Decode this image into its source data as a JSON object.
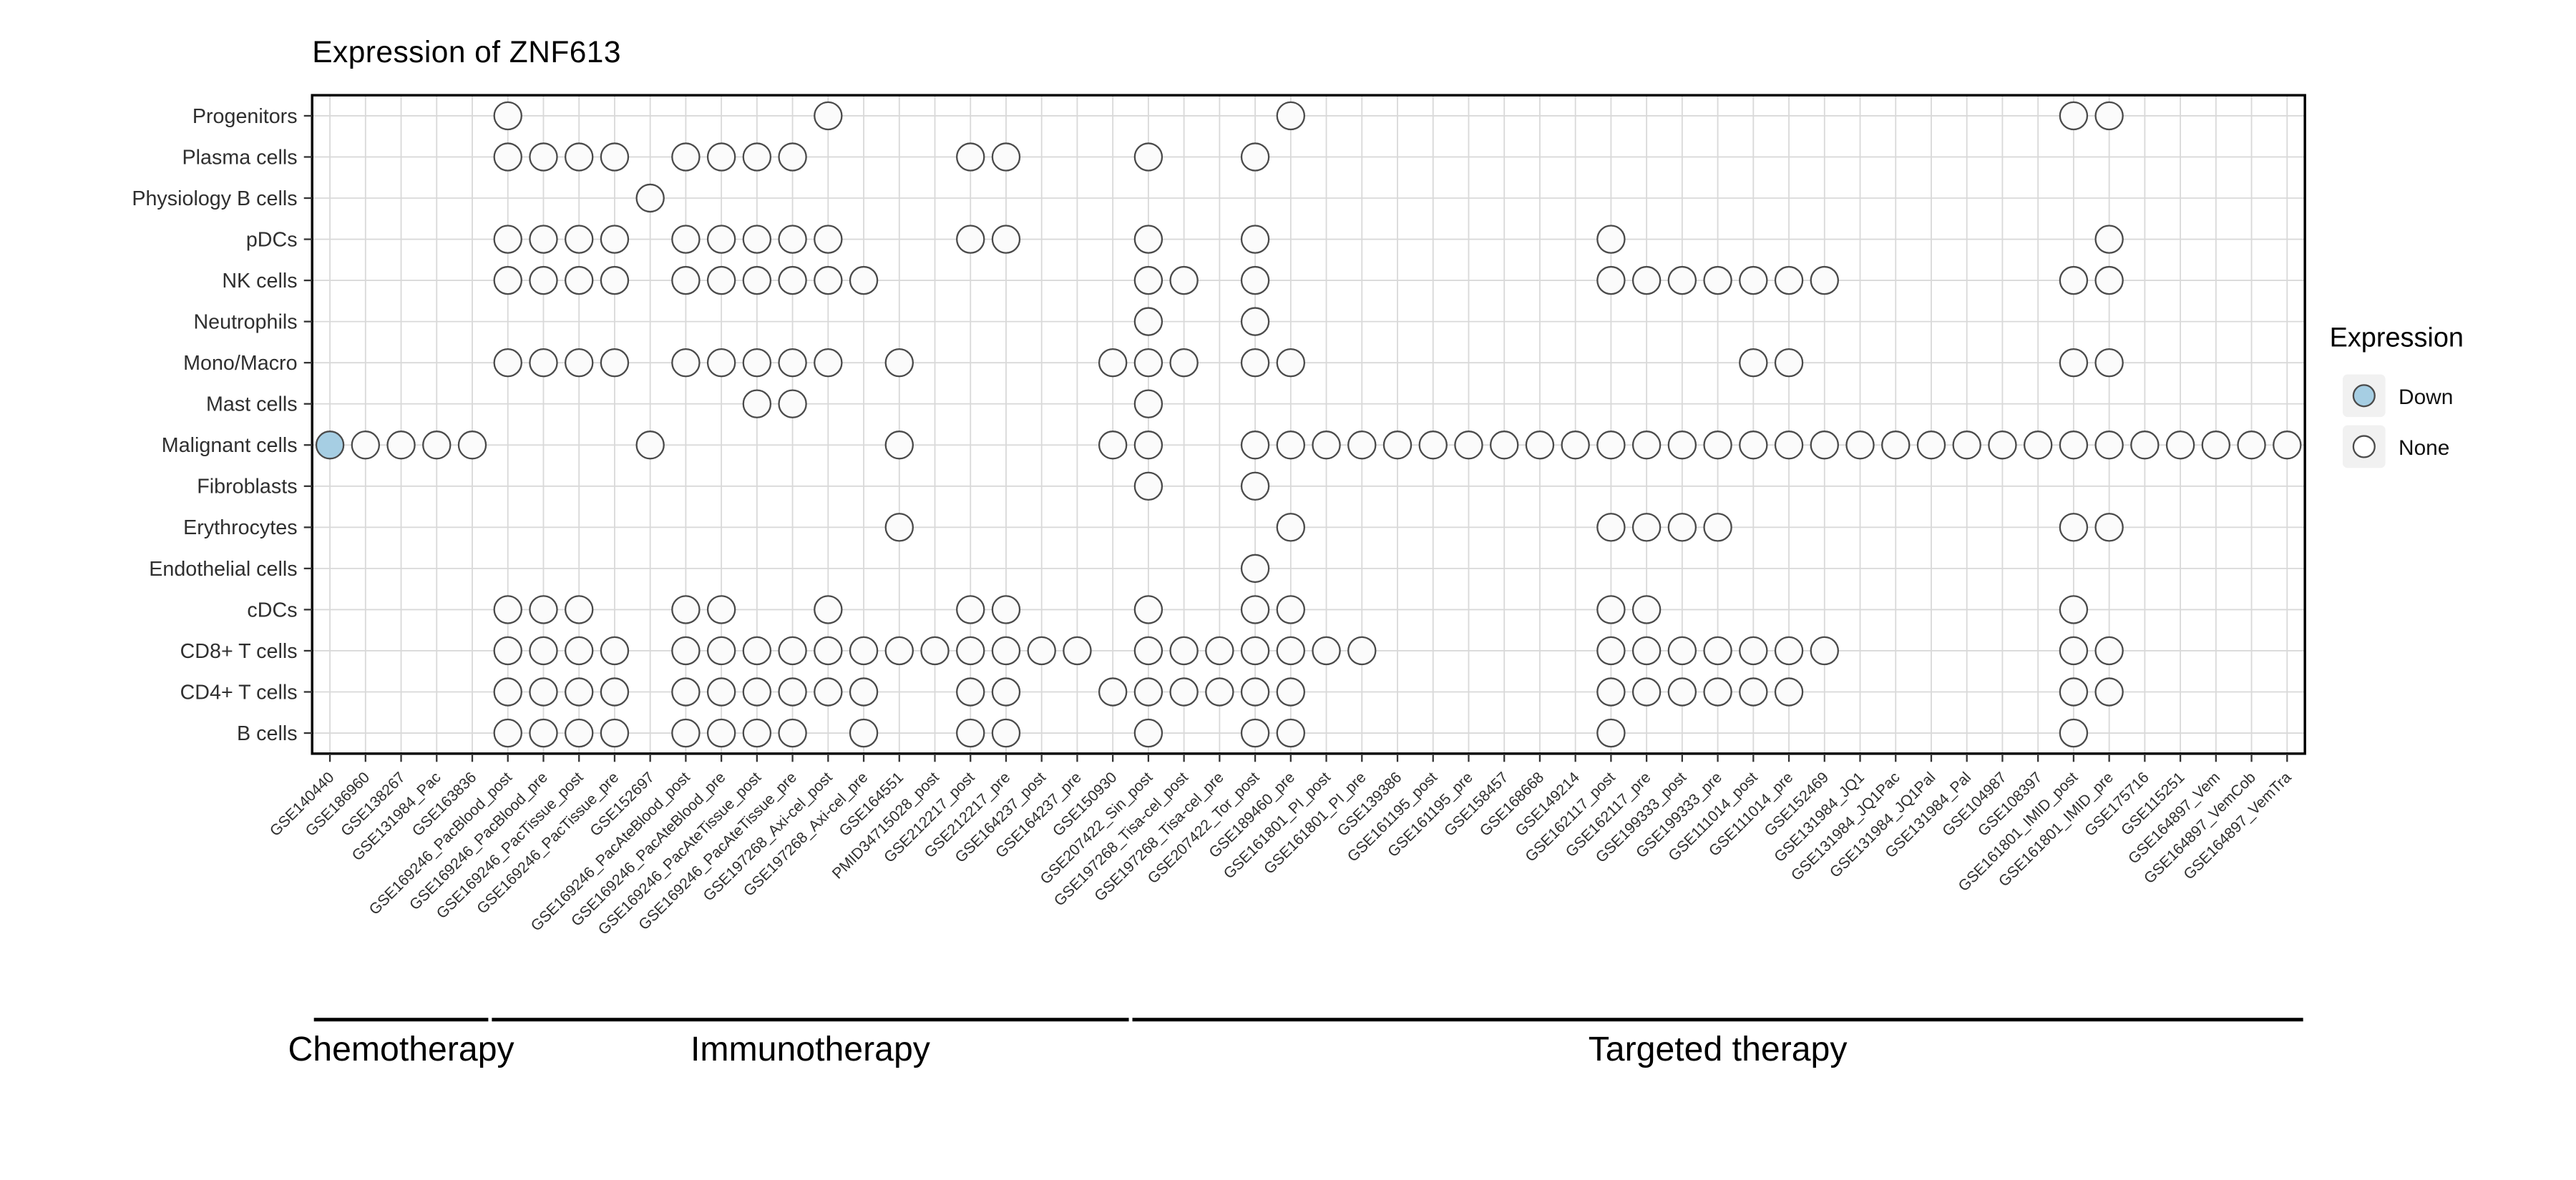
{
  "chart_data": {
    "type": "scatter",
    "title": "Expression of ZNF613",
    "grid": true,
    "legend": {
      "title": "Expression",
      "position": "right",
      "items": [
        {
          "label": "Down",
          "key": "down"
        },
        {
          "label": "None",
          "key": "none"
        }
      ]
    },
    "colors": {
      "down": "#a6cee3",
      "none": "#fbfbfb",
      "outline": "#4a4a4a",
      "grid": "#d9d9d9",
      "axis_text": "#2f2f2f",
      "panel_border": "#000000"
    },
    "rows": [
      "Progenitors",
      "Plasma cells",
      "Physiology B cells",
      "pDCs",
      "NK cells",
      "Neutrophils",
      "Mono/Macro",
      "Mast cells",
      "Malignant cells",
      "Fibroblasts",
      "Erythrocytes",
      "Endothelial cells",
      "cDCs",
      "CD8+ T cells",
      "CD4+ T cells",
      "B cells"
    ],
    "columns": [
      "GSE140440",
      "GSE186960",
      "GSE138267",
      "GSE131984_Pac",
      "GSE163836",
      "GSE169246_PacBlood_post",
      "GSE169246_PacBlood_pre",
      "GSE169246_PacTissue_post",
      "GSE169246_PacTissue_pre",
      "GSE152697",
      "GSE169246_PacAteBlood_post",
      "GSE169246_PacAteBlood_pre",
      "GSE169246_PacAteTissue_post",
      "GSE169246_PacAteTissue_pre",
      "GSE197268_Axi-cel_post",
      "GSE197268_Axi-cel_pre",
      "GSE164551",
      "PMID34715028_post",
      "GSE212217_post",
      "GSE212217_pre",
      "GSE164237_post",
      "GSE164237_pre",
      "GSE150930",
      "GSE207422_Sin_post",
      "GSE197268_Tisa-cel_post",
      "GSE197268_Tisa-cel_pre",
      "GSE207422_Tor_post",
      "GSE189460_pre",
      "GSE161801_PI_post",
      "GSE161801_PI_pre",
      "GSE139386",
      "GSE161195_post",
      "GSE161195_pre",
      "GSE158457",
      "GSE168668",
      "GSE149214",
      "GSE162117_post",
      "GSE162117_pre",
      "GSE199333_post",
      "GSE199333_pre",
      "GSE111014_post",
      "GSE111014_pre",
      "GSE152469",
      "GSE131984_JQ1",
      "GSE131984_JQ1Pac",
      "GSE131984_JQ1Pal",
      "GSE131984_Pal",
      "GSE104987",
      "GSE108397",
      "GSE161801_IMID_post",
      "GSE161801_IMID_pre",
      "GSE175716",
      "GSE115251",
      "GSE164897_Vem",
      "GSE164897_VemCob",
      "GSE164897_VemTra"
    ],
    "points": [
      {
        "row": "Progenitors",
        "value": "None",
        "cols": [
          6,
          15,
          28,
          50,
          51
        ]
      },
      {
        "row": "Plasma cells",
        "value": "None",
        "cols": [
          6,
          7,
          8,
          9,
          11,
          12,
          13,
          14,
          19,
          20,
          24,
          27
        ]
      },
      {
        "row": "Physiology B cells",
        "value": "None",
        "cols": [
          10
        ]
      },
      {
        "row": "pDCs",
        "value": "None",
        "cols": [
          6,
          7,
          8,
          9,
          11,
          12,
          13,
          14,
          15,
          19,
          20,
          24,
          27,
          37,
          51
        ]
      },
      {
        "row": "NK cells",
        "value": "None",
        "cols": [
          6,
          7,
          8,
          9,
          11,
          12,
          13,
          14,
          15,
          16,
          24,
          25,
          27,
          37,
          38,
          39,
          40,
          41,
          42,
          43,
          50,
          51
        ]
      },
      {
        "row": "Neutrophils",
        "value": "None",
        "cols": [
          24,
          27
        ]
      },
      {
        "row": "Mono/Macro",
        "value": "None",
        "cols": [
          6,
          7,
          8,
          9,
          11,
          12,
          13,
          14,
          15,
          17,
          23,
          24,
          25,
          27,
          28,
          41,
          42,
          50,
          51
        ]
      },
      {
        "row": "Mast cells",
        "value": "None",
        "cols": [
          13,
          14,
          24
        ]
      },
      {
        "row": "Malignant cells",
        "value": "Down",
        "cols": [
          1
        ]
      },
      {
        "row": "Malignant cells",
        "value": "None",
        "cols": [
          2,
          3,
          4,
          5,
          10,
          17,
          23,
          24,
          27,
          28,
          29,
          30,
          31,
          32,
          33,
          34,
          35,
          36,
          37,
          38,
          39,
          40,
          41,
          42,
          43,
          44,
          45,
          46,
          47,
          48,
          49,
          50,
          51,
          52,
          53,
          54,
          55,
          56
        ]
      },
      {
        "row": "Fibroblasts",
        "value": "None",
        "cols": [
          24,
          27
        ]
      },
      {
        "row": "Erythrocytes",
        "value": "None",
        "cols": [
          17,
          28,
          37,
          38,
          39,
          40,
          50,
          51
        ]
      },
      {
        "row": "Endothelial cells",
        "value": "None",
        "cols": [
          27
        ]
      },
      {
        "row": "cDCs",
        "value": "None",
        "cols": [
          6,
          7,
          8,
          11,
          12,
          15,
          19,
          20,
          24,
          27,
          28,
          37,
          38,
          50
        ]
      },
      {
        "row": "CD8+ T cells",
        "value": "None",
        "cols": [
          6,
          7,
          8,
          9,
          11,
          12,
          13,
          14,
          15,
          16,
          17,
          18,
          19,
          20,
          21,
          22,
          24,
          25,
          26,
          27,
          28,
          29,
          30,
          37,
          38,
          39,
          40,
          41,
          42,
          43,
          50,
          51
        ]
      },
      {
        "row": "CD4+ T cells",
        "value": "None",
        "cols": [
          6,
          7,
          8,
          9,
          11,
          12,
          13,
          14,
          15,
          16,
          19,
          20,
          23,
          24,
          25,
          26,
          27,
          28,
          37,
          38,
          39,
          40,
          41,
          42,
          50,
          51
        ]
      },
      {
        "row": "B cells",
        "value": "None",
        "cols": [
          6,
          7,
          8,
          9,
          11,
          12,
          13,
          14,
          16,
          19,
          20,
          24,
          27,
          28,
          37,
          50
        ]
      }
    ],
    "groups": [
      {
        "label": "Chemotherapy",
        "from": 1,
        "to": 5
      },
      {
        "label": "Immunotherapy",
        "from": 6,
        "to": 23
      },
      {
        "label": "Targeted therapy",
        "from": 24,
        "to": 56
      }
    ]
  }
}
